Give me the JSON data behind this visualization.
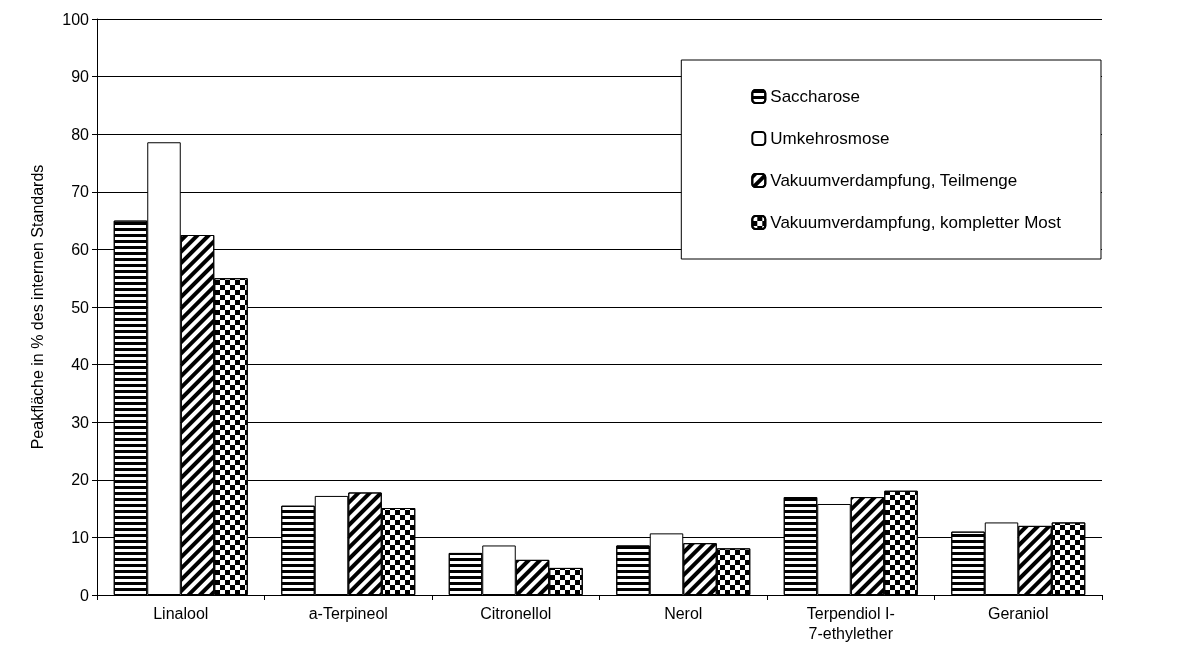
{
  "chart_data": {
    "type": "bar",
    "ylabel": "Peakfläche in % des internen Standards",
    "categories": [
      "Linalool",
      "a-Terpineol",
      "Citronellol",
      "Nerol",
      "Terpendiol I-\n7-ethylether",
      "Geraniol"
    ],
    "series": [
      {
        "name": "Saccharose",
        "color": "#000000",
        "values": [
          65,
          15.5,
          7.3,
          8.6,
          17.0,
          11.0
        ]
      },
      {
        "name": "Umkehrosmose",
        "color": "#ffffff",
        "values": [
          78.6,
          17.2,
          8.6,
          10.7,
          15.8,
          12.6
        ]
      },
      {
        "name": "Vakuumverdampfung, Teilmenge",
        "color": "#000000",
        "values": [
          62.5,
          17.8,
          6.1,
          9.0,
          17.0,
          12.0
        ]
      },
      {
        "name": "Vakuumverdampfung, kompletter Most",
        "color": "#000000",
        "values": [
          55,
          15.1,
          4.7,
          8.1,
          18.1,
          12.6
        ]
      }
    ],
    "ylim": [
      0,
      100
    ],
    "yticks": [
      0,
      10,
      20,
      30,
      40,
      50,
      60,
      70,
      80,
      90,
      100
    ],
    "grid": "y",
    "legend": "top right"
  }
}
